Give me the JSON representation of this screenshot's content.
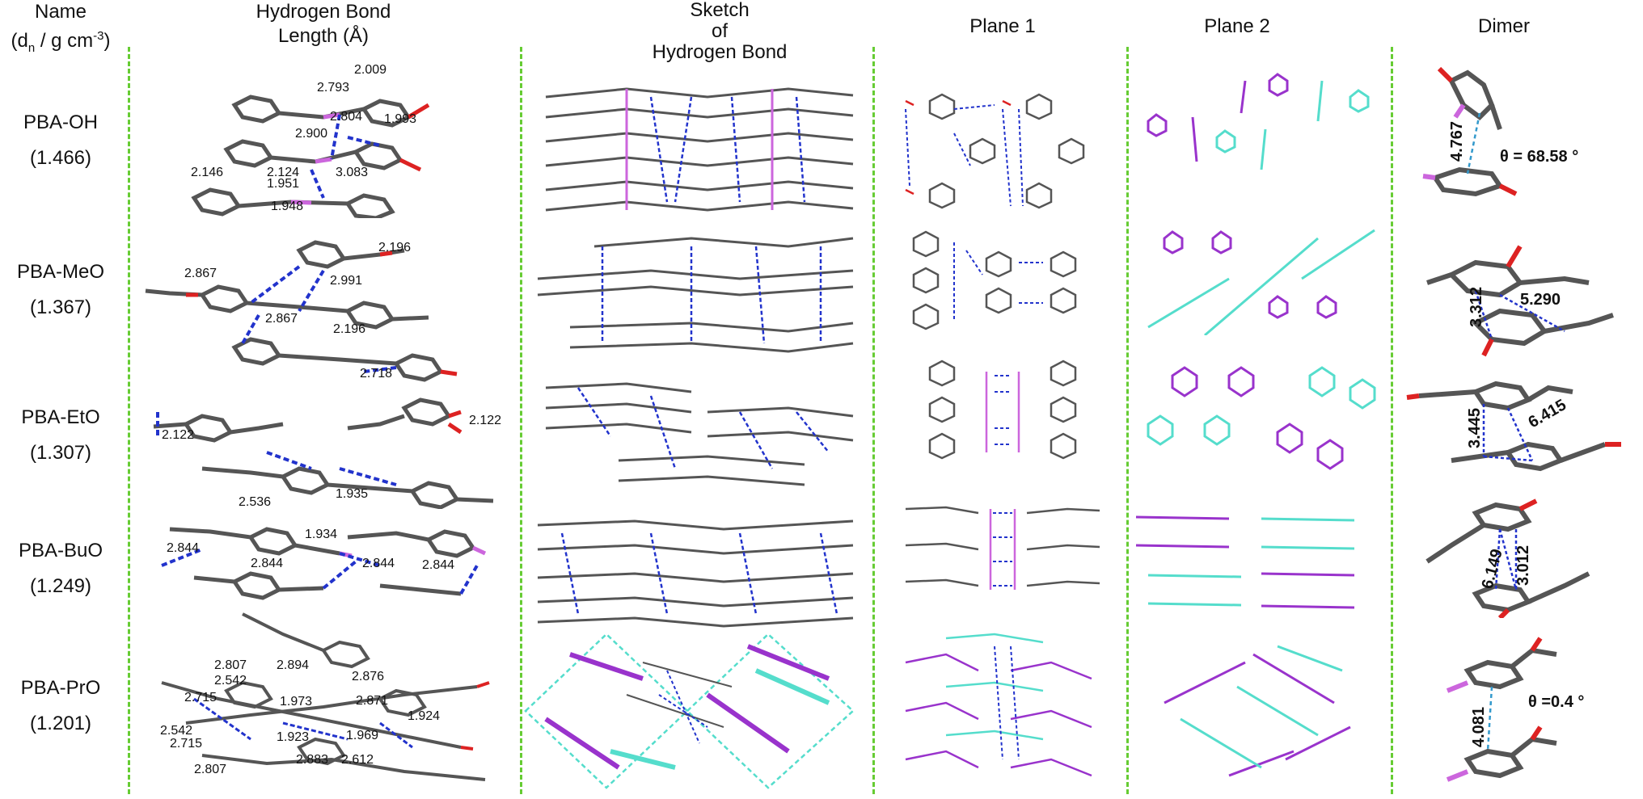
{
  "headers": {
    "name_line1": "Name",
    "name_line2_pre": "(d",
    "name_line2_sub": "n",
    "name_line2_mid": " / g cm",
    "name_line2_sup": "-3",
    "name_line2_post": ")",
    "hbond_line1": "Hydrogen Bond",
    "hbond_line2": "Length (Å)",
    "sketch_line1": "Sketch",
    "sketch_line2": "of",
    "sketch_line3": "Hydrogen Bond",
    "plane1": "Plane 1",
    "plane2": "Plane 2",
    "dimer": "Dimer"
  },
  "rows": [
    {
      "name": "PBA-OH",
      "density": "(1.466)",
      "hbond_labels": [
        "2.009",
        "2.793",
        "2.804",
        "1.993",
        "2.900",
        "2.146",
        "2.124",
        "3.083",
        "1.951",
        "1.948"
      ],
      "dimer_labels": [
        "4.767",
        "θ = 68.58 °"
      ]
    },
    {
      "name": "PBA-MeO",
      "density": "(1.367)",
      "hbond_labels": [
        "2.196",
        "2.867",
        "2.991",
        "2.867",
        "2.196",
        "2.718"
      ],
      "dimer_labels": [
        "5.290",
        "3.312"
      ]
    },
    {
      "name": "PBA-EtO",
      "density": "(1.307)",
      "hbond_labels": [
        "2.122",
        "2.122",
        "2.536",
        "1.935"
      ],
      "dimer_labels": [
        "6.415",
        "3.445"
      ]
    },
    {
      "name": "PBA-BuO",
      "density": "(1.249)",
      "hbond_labels": [
        "2.844",
        "1.934",
        "2.844",
        "2.844",
        "2.844"
      ],
      "dimer_labels": [
        "6.149",
        "3.012"
      ]
    },
    {
      "name": "PBA-PrO",
      "density": "(1.201)",
      "hbond_labels": [
        "2.807",
        "2.894",
        "2.542",
        "2.876",
        "2.715",
        "1.973",
        "2.871",
        "1.924",
        "2.542",
        "1.923",
        "1.969",
        "2.715",
        "2.807",
        "2.883",
        "2.612"
      ],
      "dimer_labels": [
        "4.081",
        "θ =0.4 °"
      ]
    }
  ],
  "colors": {
    "divider": "#66cc33",
    "carbon": "#555555",
    "hydrogen": "#bbbbbb",
    "oxygen": "#dd2222",
    "boron": "#cc66dd",
    "hbond": "#2233cc",
    "cyan": "#55ddcc",
    "purple": "#9933cc",
    "measure": "#3399cc"
  }
}
